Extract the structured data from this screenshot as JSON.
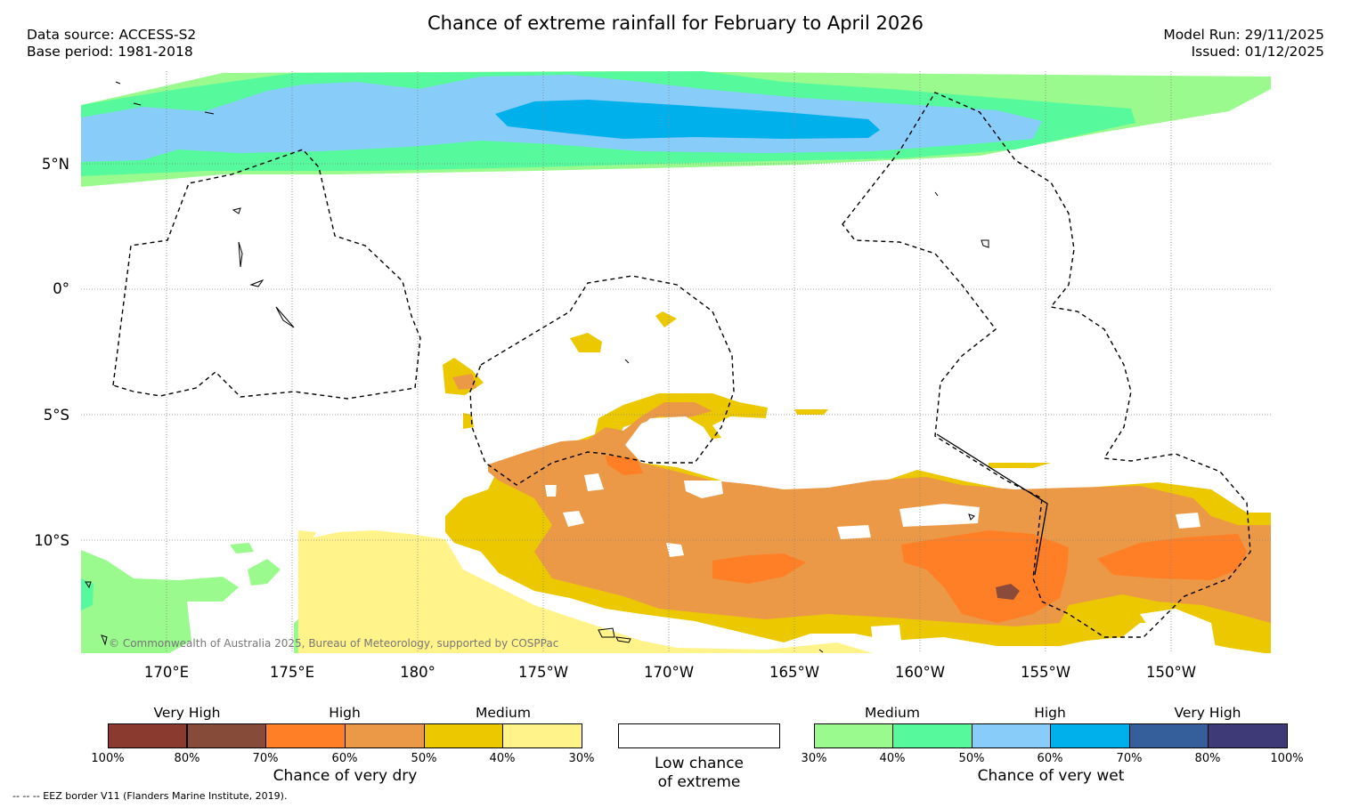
{
  "header": {
    "title": "Chance of extreme rainfall for February to April 2026",
    "data_source": "Data source: ACCESS-S2",
    "base_period": "Base period: 1981-2018",
    "model_run": "Model Run: 29/11/2025",
    "issued": "Issued: 01/12/2025"
  },
  "map": {
    "lat_labels": [
      "5°N",
      "0°",
      "5°S",
      "10°S"
    ],
    "lon_labels": [
      "170°E",
      "175°E",
      "180°",
      "175°W",
      "170°W",
      "165°W",
      "160°W",
      "155°W",
      "150°W"
    ],
    "copyright": "© Commonwealth of Australia 2025, Bureau of Meteorology, supported by COSPPac"
  },
  "legend": {
    "dry": {
      "title": "Chance of very dry",
      "categories": [
        "Very High",
        "High",
        "Medium"
      ],
      "ticks": [
        "100%",
        "80%",
        "70%",
        "60%",
        "50%",
        "40%",
        "30%"
      ],
      "colors": [
        "#8b3a30",
        "#874b3a",
        "#ff7f27",
        "#eb9946",
        "#ebc800",
        "#fff38a"
      ]
    },
    "neutral": {
      "line1": "Low chance",
      "line2": "of extreme",
      "color": "#ffffff"
    },
    "wet": {
      "title": "Chance of very wet",
      "categories": [
        "Medium",
        "High",
        "Very High"
      ],
      "ticks": [
        "30%",
        "40%",
        "50%",
        "60%",
        "70%",
        "80%",
        "100%"
      ],
      "colors": [
        "#9afa8e",
        "#56fa9c",
        "#88ccfa",
        "#00b0eb",
        "#355f9a",
        "#3e3a78"
      ]
    }
  },
  "footnote": "-- -- -- EEZ border V11 (Flanders Marine Institute, 2019)."
}
